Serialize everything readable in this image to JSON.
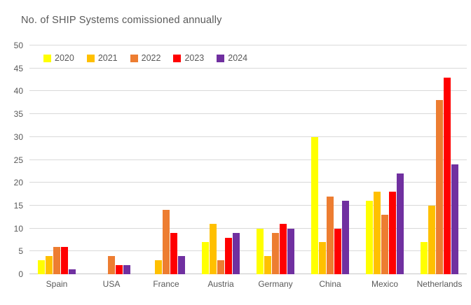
{
  "chart_data": {
    "type": "bar",
    "title": "No. of SHIP Systems comissioned annually",
    "xlabel": "",
    "ylabel": "",
    "categories": [
      "Spain",
      "USA",
      "France",
      "Austria",
      "Germany",
      "China",
      "Mexico",
      "Netherlands"
    ],
    "series": [
      {
        "name": "2020",
        "color": "#FFFF00",
        "values": [
          3,
          0,
          0,
          7,
          10,
          30,
          16,
          7
        ]
      },
      {
        "name": "2021",
        "color": "#FFC000",
        "values": [
          4,
          0,
          3,
          11,
          4,
          7,
          18,
          15
        ]
      },
      {
        "name": "2022",
        "color": "#ED7D31",
        "values": [
          6,
          4,
          14,
          3,
          9,
          17,
          13,
          38
        ]
      },
      {
        "name": "2023",
        "color": "#FF0000",
        "values": [
          6,
          2,
          9,
          8,
          11,
          10,
          18,
          43
        ]
      },
      {
        "name": "2024",
        "color": "#7030A0",
        "values": [
          1,
          2,
          4,
          9,
          10,
          16,
          22,
          24
        ]
      }
    ],
    "ylim": [
      0,
      50
    ],
    "ytick_step": 5,
    "grid": "horizontal",
    "legend_position": "top-left-inside"
  },
  "colors": {
    "text": "#595959",
    "gridline": "#D9D9D9",
    "axis_line": "#C6C6C6",
    "background": "#FFFFFF"
  }
}
